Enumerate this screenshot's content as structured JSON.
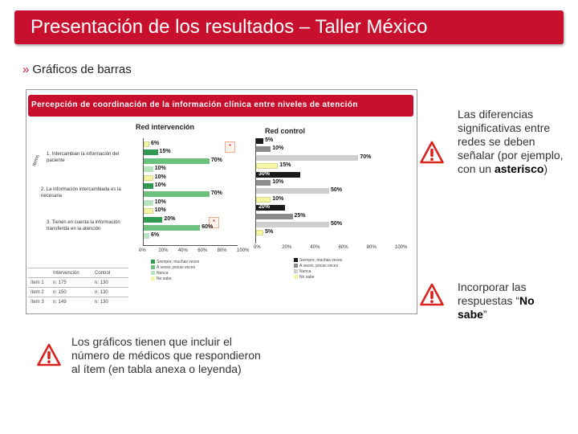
{
  "slide": {
    "title": "Presentación de los resultados – Taller México",
    "subtitle_bullet": "»",
    "subtitle": "Gráficos de barras"
  },
  "figure": {
    "title": "Percepción de coordinación de la información clínica entre niveles de atención",
    "vertical_label": "ítems",
    "star": "*",
    "colors": {
      "siempre": "#1a1a1a",
      "a_veces": "#8c8c8c",
      "nunca": "#cfcfcf",
      "no_sabe": "#f4f6a6",
      "intervencion_siempre": "#2e9a52",
      "intervencion_a_veces": "#6cc17f",
      "intervencion_nunca": "#b8e3bf",
      "intervencion_no_sabe": "#f4f6a6"
    },
    "items": [
      "1. Intercambian la información del paciente",
      "2. La información intercambiada es la necesaria",
      "3. Tienen en cuenta la información transferida en la atención"
    ],
    "ticks_left": [
      "0%",
      "20%",
      "40%",
      "60%",
      "80%",
      "100%"
    ],
    "ticks_right": [
      "0%",
      "20%",
      "40%",
      "60%",
      "80%",
      "100%"
    ],
    "legend_left": [
      "Siempre, muchas veces",
      "A veces, pocas veces",
      "Nunca",
      "No sabe"
    ],
    "legend_right": [
      "Siempre, muchas veces",
      "A veces, pocas veces",
      "Nunca",
      "No sabe"
    ],
    "table": {
      "header": [
        "",
        "Intervención",
        "Control"
      ],
      "rows": [
        [
          "ítem 1",
          "n: 175",
          "n: 130"
        ],
        [
          "ítem 2",
          "n: 150",
          "n: 130"
        ],
        [
          "ítem 3",
          "n: 149",
          "n: 130"
        ]
      ]
    }
  },
  "chart_data": [
    {
      "type": "bar",
      "title": "Red intervención",
      "categories": [
        "Item 1",
        "Item 2",
        "Item 3"
      ],
      "series": [
        {
          "name": "No sabe",
          "values": [
            6,
            10,
            10
          ]
        },
        {
          "name": "Siempre, muchas veces",
          "values": [
            15,
            10,
            20
          ]
        },
        {
          "name": "A veces, pocas veces",
          "values": [
            70,
            70,
            60
          ]
        },
        {
          "name": "Nunca",
          "values": [
            10,
            10,
            6
          ]
        }
      ],
      "xlim": [
        0,
        100
      ]
    },
    {
      "type": "bar",
      "title": "Red control",
      "categories": [
        "Item 1",
        "Item 2",
        "Item 3"
      ],
      "series": [
        {
          "name": "Siempre, muchas veces",
          "values": [
            5,
            30,
            20
          ]
        },
        {
          "name": "A veces, pocas veces",
          "values": [
            10,
            10,
            25
          ]
        },
        {
          "name": "Nunca",
          "values": [
            70,
            50,
            50
          ]
        },
        {
          "name": "No sabe",
          "values": [
            15,
            10,
            5
          ]
        }
      ],
      "xlim": [
        0,
        100
      ]
    }
  ],
  "notes": {
    "note1_part1": "Las diferencias significativas entre redes se deben señalar (por ejemplo, con un ",
    "note1_bold": "asterisco",
    "note1_part2": ")",
    "note2_part1": "Incorporar las respuestas “",
    "note2_bold": "No sabe",
    "note2_part2": "”",
    "note3": "Los gráficos tienen que incluir el número de médicos que respondieron al ítem (en tabla anexa o leyenda)"
  }
}
